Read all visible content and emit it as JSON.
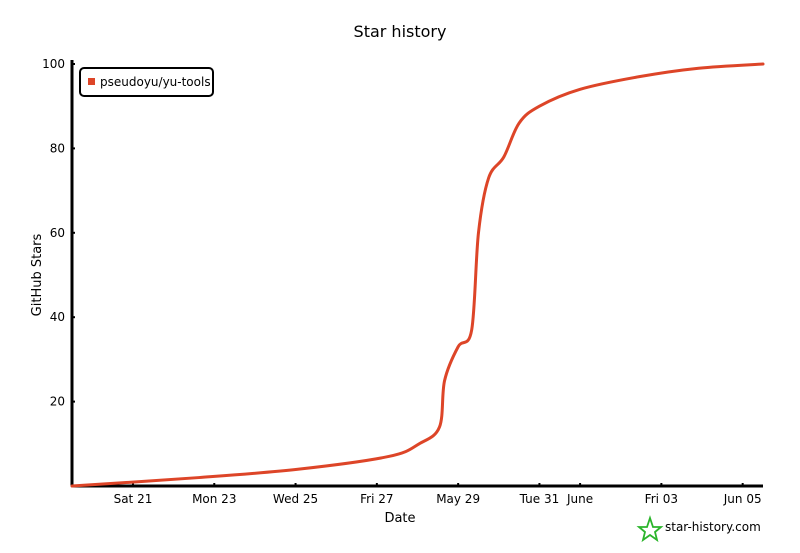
{
  "chart_data": {
    "type": "line",
    "title": "Star history",
    "xlabel": "Date",
    "ylabel": "GitHub Stars",
    "xlim": [
      "May 19 12:00",
      "Jun 05 12:00"
    ],
    "ylim": [
      0,
      100
    ],
    "x_ticks": [
      {
        "label": "Sat 21",
        "date": "May 21 00:00"
      },
      {
        "label": "Mon 23",
        "date": "May 23 00:00"
      },
      {
        "label": "Wed 25",
        "date": "May 25 00:00"
      },
      {
        "label": "Fri 27",
        "date": "May 27 00:00"
      },
      {
        "label": "May 29",
        "date": "May 29 00:00"
      },
      {
        "label": "Tue 31",
        "date": "May 31 00:00"
      },
      {
        "label": "June",
        "date": "Jun 01 00:00"
      },
      {
        "label": "Fri 03",
        "date": "Jun 03 00:00"
      },
      {
        "label": "Jun 05",
        "date": "Jun 05 00:00"
      }
    ],
    "y_ticks": [
      20,
      40,
      60,
      80,
      100
    ],
    "grid": false,
    "legend_position": "top-left",
    "series": [
      {
        "name": "pseudoyu/yu-tools",
        "color": "#dd4528",
        "x": [
          "May 19 12:00",
          "May 22 15:00",
          "May 25 02:00",
          "May 27 07:00",
          "May 28 01:00",
          "May 28 13:00",
          "May 28 16:00",
          "May 29 00:00",
          "May 29 08:00",
          "May 29 12:00",
          "May 29 18:00",
          "May 30 03:00",
          "May 30 12:00",
          "May 31 00:00",
          "Jun 01 00:00",
          "Jun 02 11:00",
          "Jun 03 22:00",
          "Jun 05 12:00"
        ],
        "y": [
          0,
          2,
          4,
          7,
          10,
          14,
          25,
          33,
          37,
          60,
          73,
          78,
          86,
          90,
          94,
          97,
          99,
          100
        ]
      }
    ]
  },
  "watermark": {
    "text": "star-history.com",
    "color": "#2bb52b"
  }
}
